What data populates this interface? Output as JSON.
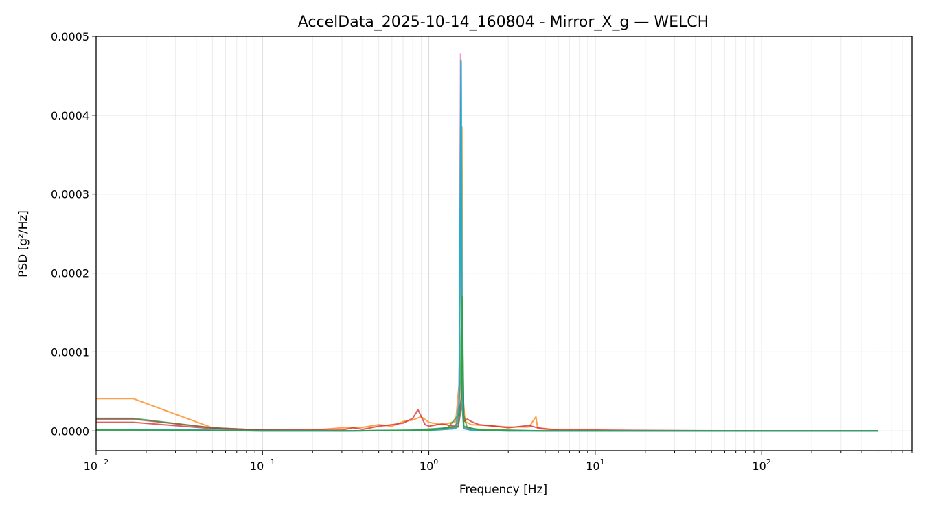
{
  "chart_data": {
    "type": "line",
    "title": "AccelData_2025-10-14_160804 - Mirror_X_g — WELCH",
    "xlabel": "Frequency [Hz]",
    "ylabel": "PSD [g²/Hz]",
    "xscale": "log",
    "xlim": [
      0.01,
      800
    ],
    "ylim": [
      -2.5e-05,
      0.0005
    ],
    "grid": true,
    "legend": "none",
    "x_ticks": [
      {
        "value": 0.01,
        "base": "10",
        "exp": "−2"
      },
      {
        "value": 0.1,
        "base": "10",
        "exp": "−1"
      },
      {
        "value": 1,
        "base": "10",
        "exp": "0"
      },
      {
        "value": 10,
        "base": "10",
        "exp": "1"
      },
      {
        "value": 100,
        "base": "10",
        "exp": "2"
      }
    ],
    "y_ticks": [
      {
        "value": 0,
        "label": "0.0000"
      },
      {
        "value": 0.0001,
        "label": "0.0001"
      },
      {
        "value": 0.0002,
        "label": "0.0002"
      },
      {
        "value": 0.0003,
        "label": "0.0003"
      },
      {
        "value": 0.0004,
        "label": "0.0004"
      },
      {
        "value": 0.0005,
        "label": "0.0005"
      }
    ],
    "series": [
      {
        "color": "#ff7f0e",
        "x": [
          0.01,
          0.0167,
          0.05,
          0.1,
          0.2,
          0.3,
          0.4,
          0.5,
          0.6,
          0.7,
          0.8,
          0.9,
          1.0,
          1.2,
          1.45,
          1.52,
          1.56,
          1.58,
          1.6,
          1.65,
          1.8,
          2.2,
          3.0,
          4.0,
          4.4,
          4.5,
          4.6,
          5.5,
          10,
          20,
          50,
          100,
          200,
          500
        ],
        "y": [
          4.1e-05,
          4.1e-05,
          4e-06,
          1e-06,
          1e-06,
          4e-06,
          4.5e-06,
          8e-06,
          6e-06,
          1.2e-05,
          1.4e-05,
          1.8e-05,
          1.1e-05,
          8e-06,
          1.2e-05,
          6e-05,
          0.00029,
          0.000385,
          4.5e-05,
          1.2e-05,
          8e-06,
          7e-06,
          5e-06,
          5e-06,
          1.8e-05,
          4e-06,
          3e-06,
          1e-06,
          1e-06,
          0,
          0,
          0,
          0,
          0
        ]
      },
      {
        "color": "#2ca02c",
        "x": [
          0.01,
          0.0167,
          0.05,
          0.1,
          0.3,
          0.8,
          1.3,
          1.5,
          1.55,
          1.58,
          1.62,
          1.7,
          2.0,
          3.0,
          5.0,
          10,
          100,
          500
        ],
        "y": [
          1.6e-05,
          1.6e-05,
          4e-06,
          1e-06,
          0,
          1e-06,
          4e-06,
          2e-05,
          7e-05,
          0.000168,
          2e-05,
          4e-06,
          2e-06,
          1e-06,
          0,
          0,
          0,
          0
        ]
      },
      {
        "color": "#d62728",
        "x": [
          0.01,
          0.0167,
          0.05,
          0.1,
          0.3,
          0.35,
          0.4,
          0.5,
          0.6,
          0.7,
          0.8,
          0.86,
          0.95,
          1.0,
          1.2,
          1.4,
          1.5,
          1.56,
          1.59,
          1.62,
          1.7,
          1.8,
          2.0,
          2.5,
          3.0,
          4.0,
          4.5,
          6.0,
          10,
          100,
          500
        ],
        "y": [
          1.1e-05,
          1.1e-05,
          3e-06,
          1e-06,
          1e-06,
          4e-06,
          2e-06,
          6e-06,
          8e-06,
          1e-05,
          1.6e-05,
          2.7e-05,
          8e-06,
          6e-06,
          9e-06,
          6e-06,
          1e-05,
          4e-05,
          0.000125,
          1.2e-05,
          1.5e-05,
          1.2e-05,
          8e-06,
          6e-06,
          4e-06,
          7e-06,
          4e-06,
          1e-06,
          1e-06,
          0,
          0
        ]
      },
      {
        "color": "#8c564b",
        "x": [
          0.01,
          0.0167,
          0.05,
          0.1,
          0.3,
          1.0,
          1.5,
          1.58,
          1.62,
          2.0,
          5.0,
          10,
          100,
          500
        ],
        "y": [
          1.5e-05,
          1.5e-05,
          4e-06,
          1e-06,
          0,
          1e-06,
          5e-06,
          3.4e-05,
          5e-06,
          1e-06,
          0,
          0,
          0,
          0
        ]
      },
      {
        "color": "#e377c2",
        "x": [
          0.01,
          0.0167,
          0.05,
          0.1,
          0.3,
          1.0,
          1.45,
          1.52,
          1.55,
          1.58,
          1.62,
          1.8,
          3.0,
          10,
          100,
          500
        ],
        "y": [
          1e-06,
          1e-06,
          5e-07,
          0,
          0,
          5e-07,
          3e-06,
          4e-05,
          0.000478,
          6e-05,
          4e-06,
          1e-06,
          0,
          0,
          0,
          0
        ]
      },
      {
        "color": "#1f77b4",
        "x": [
          0.01,
          0.0167,
          0.05,
          0.1,
          0.3,
          1.0,
          1.45,
          1.52,
          1.56,
          1.58,
          1.62,
          1.8,
          3.0,
          10,
          100,
          500
        ],
        "y": [
          2e-06,
          2e-06,
          1e-06,
          0,
          0,
          1e-06,
          3e-06,
          3e-05,
          0.00047,
          5e-05,
          3e-06,
          1e-06,
          0,
          0,
          0,
          0
        ]
      },
      {
        "color": "#17becf",
        "x": [
          0.01,
          0.0167,
          0.05,
          0.1,
          0.3,
          1.0,
          1.45,
          1.52,
          1.565,
          1.59,
          1.62,
          1.8,
          3.0,
          10,
          100,
          500
        ],
        "y": [
          1.5e-06,
          1.5e-06,
          8e-07,
          0,
          0,
          8e-07,
          3e-06,
          3.5e-05,
          0.000468,
          4e-05,
          3e-06,
          1e-06,
          0,
          0,
          0,
          0
        ]
      },
      {
        "color": "#2ca02c",
        "x": [
          0.01,
          0.0167,
          0.05,
          0.1,
          0.3,
          1.0,
          1.5,
          1.57,
          1.59,
          1.62,
          2.0,
          5.0,
          10,
          100,
          500
        ],
        "y": [
          1e-06,
          1e-06,
          5e-07,
          0,
          0,
          1e-06,
          6e-06,
          4e-05,
          0.00017,
          6e-06,
          1e-06,
          0,
          0,
          0,
          0
        ]
      }
    ]
  }
}
